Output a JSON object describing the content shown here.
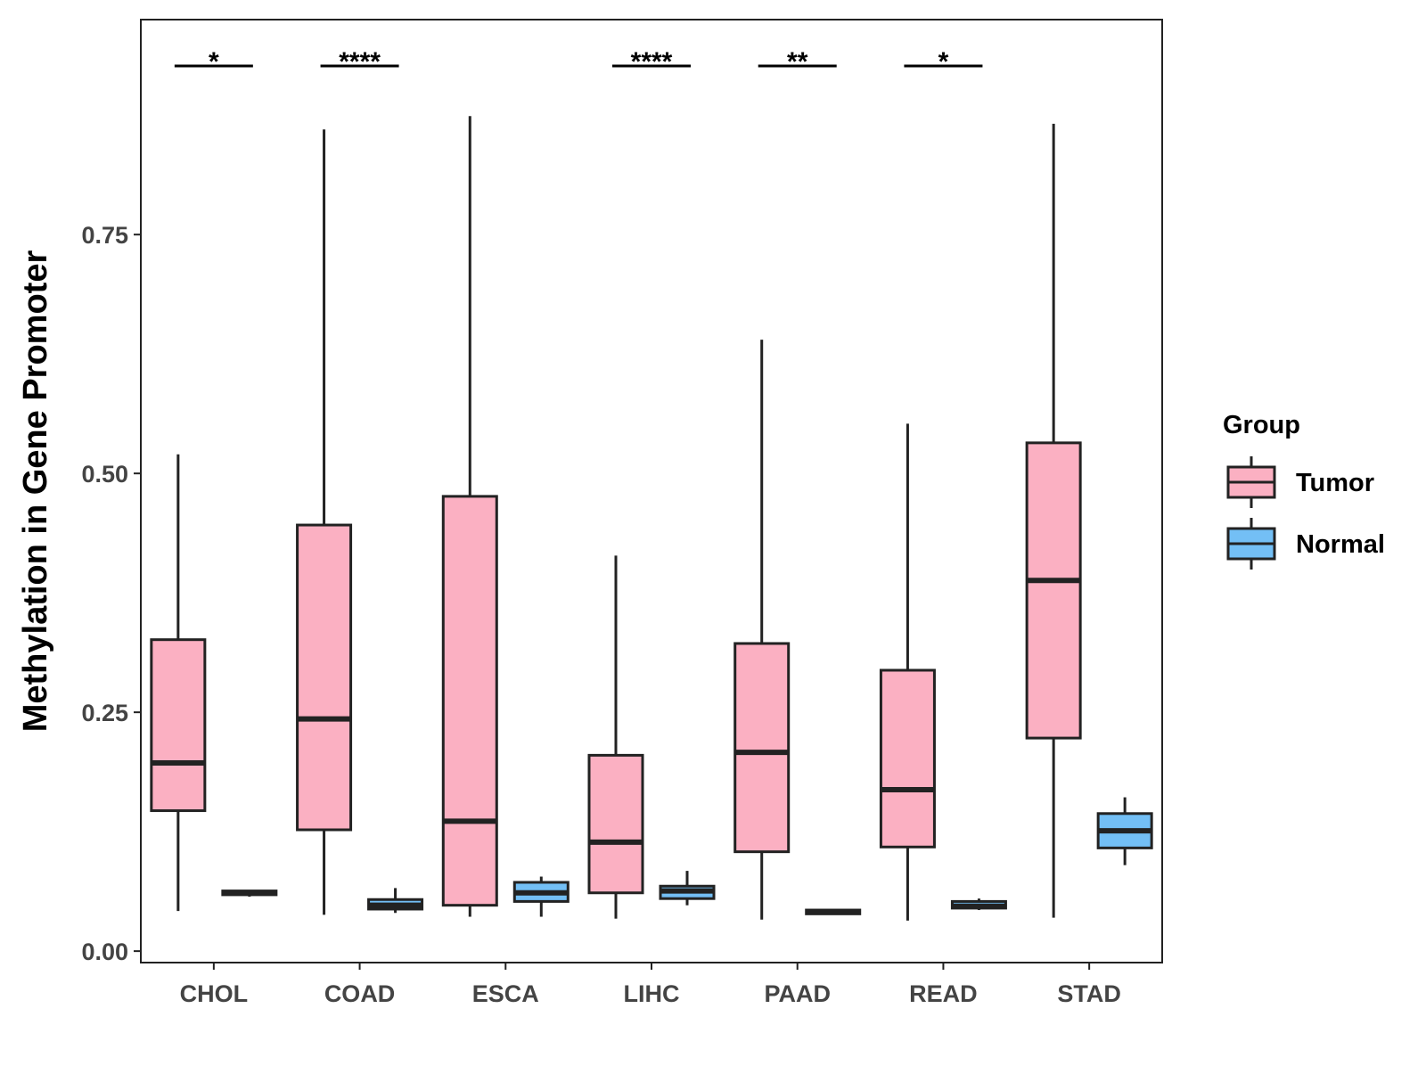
{
  "chart_data": {
    "type": "boxplot",
    "title": "",
    "xlabel": "",
    "ylabel": "Methylation in Gene Promoter",
    "ylim": [
      -0.012,
      0.975
    ],
    "yticks": [
      0.0,
      0.25,
      0.5,
      0.75
    ],
    "ytick_labels": [
      "0.00",
      "0.25",
      "0.50",
      "0.75"
    ],
    "grid": false,
    "categories": [
      "CHOL",
      "COAD",
      "ESCA",
      "LIHC",
      "PAAD",
      "READ",
      "STAD"
    ],
    "legend": {
      "title": "Group",
      "position": "right",
      "entries": [
        {
          "name": "Tumor",
          "color": "#fbb0c2"
        },
        {
          "name": "Normal",
          "color": "#73bff5"
        }
      ]
    },
    "series": [
      {
        "name": "Tumor",
        "color": "#fbb0c2",
        "boxes": [
          {
            "category": "CHOL",
            "whislo": 0.042,
            "q1": 0.147,
            "med": 0.197,
            "q3": 0.326,
            "whishi": 0.52
          },
          {
            "category": "COAD",
            "whislo": 0.038,
            "q1": 0.127,
            "med": 0.243,
            "q3": 0.446,
            "whishi": 0.86
          },
          {
            "category": "ESCA",
            "whislo": 0.036,
            "q1": 0.048,
            "med": 0.136,
            "q3": 0.476,
            "whishi": 0.874
          },
          {
            "category": "LIHC",
            "whislo": 0.034,
            "q1": 0.061,
            "med": 0.114,
            "q3": 0.205,
            "whishi": 0.414
          },
          {
            "category": "PAAD",
            "whislo": 0.033,
            "q1": 0.104,
            "med": 0.208,
            "q3": 0.322,
            "whishi": 0.64
          },
          {
            "category": "READ",
            "whislo": 0.032,
            "q1": 0.109,
            "med": 0.169,
            "q3": 0.294,
            "whishi": 0.552
          },
          {
            "category": "STAD",
            "whislo": 0.035,
            "q1": 0.223,
            "med": 0.388,
            "q3": 0.532,
            "whishi": 0.866
          }
        ]
      },
      {
        "name": "Normal",
        "color": "#73bff5",
        "boxes": [
          {
            "category": "CHOL",
            "whislo": 0.057,
            "q1": 0.059,
            "med": 0.061,
            "q3": 0.063,
            "whishi": 0.064
          },
          {
            "category": "COAD",
            "whislo": 0.04,
            "q1": 0.044,
            "med": 0.048,
            "q3": 0.054,
            "whishi": 0.066
          },
          {
            "category": "ESCA",
            "whislo": 0.036,
            "q1": 0.052,
            "med": 0.061,
            "q3": 0.072,
            "whishi": 0.078
          },
          {
            "category": "LIHC",
            "whislo": 0.048,
            "q1": 0.055,
            "med": 0.063,
            "q3": 0.068,
            "whishi": 0.084
          },
          {
            "category": "PAAD",
            "whislo": 0.038,
            "q1": 0.039,
            "med": 0.041,
            "q3": 0.043,
            "whishi": 0.044
          },
          {
            "category": "READ",
            "whislo": 0.043,
            "q1": 0.045,
            "med": 0.047,
            "q3": 0.052,
            "whishi": 0.055
          },
          {
            "category": "STAD",
            "whislo": 0.09,
            "q1": 0.108,
            "med": 0.126,
            "q3": 0.144,
            "whishi": 0.161
          }
        ]
      }
    ],
    "significance": [
      {
        "category": "CHOL",
        "label": "*"
      },
      {
        "category": "COAD",
        "label": "****"
      },
      {
        "category": "LIHC",
        "label": "****"
      },
      {
        "category": "PAAD",
        "label": "**"
      },
      {
        "category": "READ",
        "label": "*"
      }
    ]
  }
}
